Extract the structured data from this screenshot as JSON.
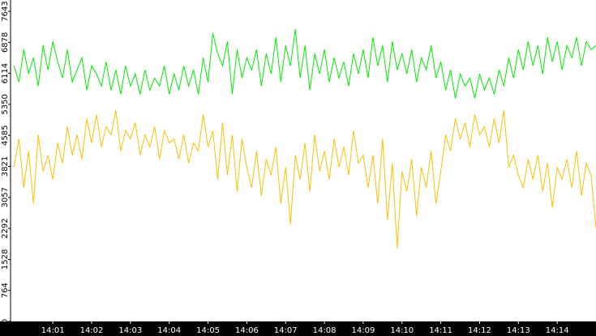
{
  "chart_data": {
    "type": "line",
    "x": [
      0,
      0.125,
      0.25,
      0.375,
      0.5,
      0.625,
      0.75,
      0.875,
      1,
      1.125,
      1.25,
      1.375,
      1.5,
      1.625,
      1.75,
      1.875,
      2,
      2.125,
      2.25,
      2.375,
      2.5,
      2.625,
      2.75,
      2.875,
      3,
      3.125,
      3.25,
      3.375,
      3.5,
      3.625,
      3.75,
      3.875,
      4,
      4.125,
      4.25,
      4.375,
      4.5,
      4.625,
      4.75,
      4.875,
      5,
      5.125,
      5.25,
      5.375,
      5.5,
      5.625,
      5.75,
      5.875,
      6,
      6.125,
      6.25,
      6.375,
      6.5,
      6.625,
      6.75,
      6.875,
      7,
      7.125,
      7.25,
      7.375,
      7.5,
      7.625,
      7.75,
      7.875,
      8,
      8.125,
      8.25,
      8.375,
      8.5,
      8.625,
      8.75,
      8.875,
      9,
      9.125,
      9.25,
      9.375,
      9.5,
      9.625,
      9.75,
      9.875,
      10,
      10.125,
      10.25,
      10.375,
      10.5,
      10.625,
      10.75,
      10.875,
      11,
      11.125,
      11.25,
      11.375,
      11.5,
      11.625,
      11.75,
      11.875,
      12,
      12.125,
      12.25,
      12.375,
      12.5,
      12.625,
      12.75,
      12.875,
      13,
      13.125,
      13.25,
      13.375,
      13.5,
      13.625,
      13.75,
      13.875,
      14,
      14.125,
      14.25,
      14.375,
      14.5,
      14.625,
      14.75,
      14.875,
      15
    ],
    "series": [
      {
        "color": "#00ee00",
        "values": [
          6300,
          5900,
          6700,
          6100,
          6500,
          5800,
          6800,
          6200,
          6900,
          6400,
          6000,
          6700,
          5900,
          6200,
          6500,
          5700,
          6300,
          6100,
          5800,
          6400,
          5700,
          6200,
          5600,
          6300,
          5800,
          6100,
          5600,
          6200,
          5700,
          6000,
          5800,
          6300,
          5600,
          6100,
          5700,
          6300,
          5800,
          6200,
          5600,
          6500,
          5900,
          7100,
          6600,
          6300,
          6900,
          5600,
          6700,
          6000,
          6500,
          6200,
          6700,
          5800,
          6600,
          6100,
          7000,
          5900,
          6800,
          6300,
          7200,
          6000,
          6800,
          5700,
          6600,
          6100,
          6700,
          5900,
          6500,
          6000,
          6400,
          5800,
          6600,
          6100,
          6700,
          6000,
          7000,
          6300,
          6800,
          5900,
          6900,
          6200,
          6600,
          6100,
          6700,
          5900,
          6500,
          6200,
          6800,
          6000,
          6400,
          5700,
          6200,
          5500,
          6100,
          5800,
          6000,
          5500,
          6100,
          5700,
          6000,
          5600,
          6200,
          5800,
          6500,
          6000,
          6700,
          6200,
          6900,
          6300,
          6800,
          6100,
          7000,
          6400,
          6900,
          6200,
          6800,
          6500,
          7000,
          6300,
          6900,
          6700,
          6800
        ]
      },
      {
        "color": "#ffc000",
        "values": [
          3800,
          4500,
          3300,
          4200,
          2900,
          4600,
          3700,
          4100,
          3500,
          4400,
          3900,
          4800,
          4100,
          4600,
          4000,
          5000,
          4400,
          5100,
          4300,
          4800,
          4600,
          5200,
          4200,
          4700,
          4500,
          4900,
          4100,
          4600,
          4300,
          4800,
          4000,
          4700,
          4400,
          4500,
          4000,
          4600,
          3900,
          4400,
          4200,
          5100,
          4300,
          4700,
          3500,
          4900,
          3600,
          4600,
          3200,
          4500,
          3800,
          3300,
          4200,
          3100,
          4000,
          3600,
          4300,
          2900,
          3800,
          2400,
          4100,
          3500,
          4400,
          3200,
          4600,
          3700,
          4200,
          3500,
          4500,
          3800,
          4300,
          3600,
          4700,
          3900,
          4100,
          3300,
          4100,
          2900,
          4500,
          2500,
          3900,
          1800,
          3700,
          3200,
          4000,
          2600,
          3800,
          3300,
          4200,
          2900,
          3700,
          4600,
          4200,
          5000,
          4500,
          4900,
          4300,
          5100,
          4600,
          4800,
          4300,
          5000,
          4400,
          5200,
          3800,
          4100,
          3600,
          3300,
          4000,
          3500,
          4100,
          3200,
          3900,
          2800,
          3800,
          3500,
          4000,
          3300,
          4200,
          3100,
          3900,
          3600,
          2300
        ]
      }
    ],
    "xlim": [
      -0.09,
      15
    ],
    "xticks": [
      {
        "value": 1,
        "label": "14:01"
      },
      {
        "value": 2,
        "label": "14:02"
      },
      {
        "value": 3,
        "label": "14:03"
      },
      {
        "value": 4,
        "label": "14:04"
      },
      {
        "value": 5,
        "label": "14:05"
      },
      {
        "value": 6,
        "label": "14:06"
      },
      {
        "value": 7,
        "label": "14:07"
      },
      {
        "value": 8,
        "label": "14:08"
      },
      {
        "value": 9,
        "label": "14:09"
      },
      {
        "value": 10,
        "label": "14:10"
      },
      {
        "value": 11,
        "label": "14:11"
      },
      {
        "value": 12,
        "label": "14:12"
      },
      {
        "value": 13,
        "label": "14:13"
      },
      {
        "value": 14,
        "label": "14:14"
      }
    ],
    "ylim": [
      0,
      7643
    ],
    "yticks": [
      0,
      764,
      1528,
      2292,
      3057,
      3821,
      4585,
      5350,
      6114,
      6878,
      7643
    ]
  }
}
